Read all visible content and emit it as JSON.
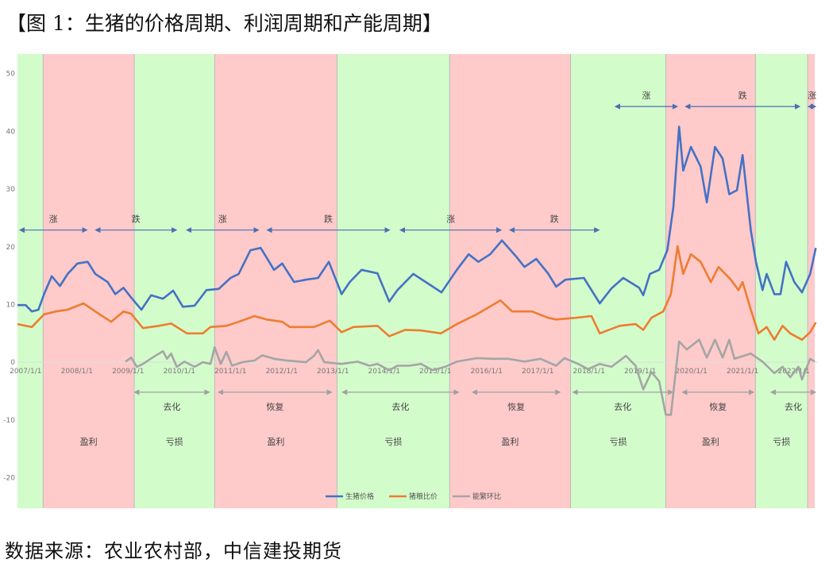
{
  "title": "【图 1：生猪的价格周期、利润周期和产能周期】",
  "source": "数据来源：农业农村部，中信建投期货",
  "colors": {
    "profit_band": "#ffcaca",
    "loss_band": "#d3fccb",
    "price": "#4472c4",
    "ratio": "#ed7d31",
    "capacity": "#a5a5a5",
    "price_arrow": "#4a6fb0",
    "capacity_arrow": "#a0a0a0"
  },
  "chart_data": {
    "type": "line",
    "title": "",
    "xlabel": "",
    "ylabel": "",
    "xlim": [
      2006.84,
      2022.47
    ],
    "ylim": [
      -25.3,
      53.4
    ],
    "y_ticks": [
      50,
      40,
      30,
      20,
      10,
      0,
      -10,
      -20
    ],
    "x_ticks": [
      {
        "label": "2007/1/1",
        "value": 2007
      },
      {
        "label": "2008/1/1",
        "value": 2008
      },
      {
        "label": "2009/1/1",
        "value": 2009
      },
      {
        "label": "2010/1/1",
        "value": 2010
      },
      {
        "label": "2011/1/1",
        "value": 2011
      },
      {
        "label": "2012/1/1",
        "value": 2012
      },
      {
        "label": "2013/1/1",
        "value": 2013
      },
      {
        "label": "2014/1/1",
        "value": 2014
      },
      {
        "label": "2015/1/1",
        "value": 2015
      },
      {
        "label": "2016/1/1",
        "value": 2016
      },
      {
        "label": "2017/1/1",
        "value": 2017
      },
      {
        "label": "2018/1/1",
        "value": 2018
      },
      {
        "label": "2019/1/1",
        "value": 2019
      },
      {
        "label": "2020/1/1",
        "value": 2020
      },
      {
        "label": "2021/1/1",
        "value": 2021
      },
      {
        "label": "2022/1/1",
        "value": 2022
      }
    ],
    "legend_position": "bottom",
    "grid": false,
    "series": [
      {
        "name": "生猪价格",
        "color_key": "price",
        "points": [
          [
            2006.84,
            9.9
          ],
          [
            2007.0,
            9.9
          ],
          [
            2007.12,
            8.8
          ],
          [
            2007.25,
            9.1
          ],
          [
            2007.36,
            11.8
          ],
          [
            2007.51,
            14.9
          ],
          [
            2007.67,
            13.2
          ],
          [
            2007.82,
            15.3
          ],
          [
            2008.01,
            17.1
          ],
          [
            2008.21,
            17.4
          ],
          [
            2008.36,
            15.3
          ],
          [
            2008.6,
            13.9
          ],
          [
            2008.75,
            11.8
          ],
          [
            2008.91,
            12.9
          ],
          [
            2009.06,
            11.2
          ],
          [
            2009.26,
            9.1
          ],
          [
            2009.45,
            11.6
          ],
          [
            2009.68,
            11.0
          ],
          [
            2009.88,
            12.4
          ],
          [
            2010.07,
            9.6
          ],
          [
            2010.3,
            9.8
          ],
          [
            2010.53,
            12.5
          ],
          [
            2010.77,
            12.7
          ],
          [
            2011.0,
            14.6
          ],
          [
            2011.16,
            15.3
          ],
          [
            2011.39,
            19.4
          ],
          [
            2011.59,
            19.8
          ],
          [
            2011.85,
            16.0
          ],
          [
            2012.01,
            17.1
          ],
          [
            2012.24,
            13.9
          ],
          [
            2012.47,
            14.3
          ],
          [
            2012.71,
            14.6
          ],
          [
            2012.92,
            17.4
          ],
          [
            2013.17,
            11.8
          ],
          [
            2013.33,
            13.9
          ],
          [
            2013.56,
            16.0
          ],
          [
            2013.87,
            15.4
          ],
          [
            2014.1,
            10.5
          ],
          [
            2014.26,
            12.5
          ],
          [
            2014.57,
            15.3
          ],
          [
            2014.88,
            13.5
          ],
          [
            2015.12,
            12.1
          ],
          [
            2015.42,
            16.0
          ],
          [
            2015.65,
            18.7
          ],
          [
            2015.84,
            17.4
          ],
          [
            2016.07,
            18.7
          ],
          [
            2016.3,
            21.1
          ],
          [
            2016.58,
            18.3
          ],
          [
            2016.74,
            16.5
          ],
          [
            2016.97,
            17.9
          ],
          [
            2017.2,
            15.4
          ],
          [
            2017.36,
            13.1
          ],
          [
            2017.54,
            14.3
          ],
          [
            2017.9,
            14.6
          ],
          [
            2018.21,
            10.2
          ],
          [
            2018.44,
            12.8
          ],
          [
            2018.67,
            14.6
          ],
          [
            2018.98,
            12.9
          ],
          [
            2019.06,
            11.6
          ],
          [
            2019.19,
            15.3
          ],
          [
            2019.37,
            16.0
          ],
          [
            2019.53,
            19.4
          ],
          [
            2019.65,
            27.0
          ],
          [
            2019.76,
            40.8
          ],
          [
            2019.84,
            33.2
          ],
          [
            2019.99,
            37.3
          ],
          [
            2020.18,
            33.9
          ],
          [
            2020.3,
            27.7
          ],
          [
            2020.46,
            37.3
          ],
          [
            2020.61,
            35.3
          ],
          [
            2020.74,
            29.1
          ],
          [
            2020.89,
            29.8
          ],
          [
            2021.0,
            35.9
          ],
          [
            2021.16,
            22.9
          ],
          [
            2021.26,
            17.4
          ],
          [
            2021.39,
            12.5
          ],
          [
            2021.47,
            15.3
          ],
          [
            2021.62,
            11.8
          ],
          [
            2021.74,
            11.8
          ],
          [
            2021.85,
            17.4
          ],
          [
            2022.01,
            13.9
          ],
          [
            2022.16,
            12.1
          ],
          [
            2022.32,
            15.3
          ],
          [
            2022.43,
            19.8
          ]
        ]
      },
      {
        "name": "猪粮比价",
        "color_key": "ratio",
        "points": [
          [
            2006.84,
            6.6
          ],
          [
            2007.12,
            6.1
          ],
          [
            2007.36,
            8.3
          ],
          [
            2007.59,
            8.8
          ],
          [
            2007.82,
            9.1
          ],
          [
            2008.13,
            10.2
          ],
          [
            2008.36,
            8.8
          ],
          [
            2008.67,
            7.0
          ],
          [
            2008.91,
            8.8
          ],
          [
            2009.06,
            8.4
          ],
          [
            2009.29,
            5.9
          ],
          [
            2009.6,
            6.3
          ],
          [
            2009.84,
            6.7
          ],
          [
            2010.15,
            5.0
          ],
          [
            2010.46,
            5.0
          ],
          [
            2010.61,
            6.1
          ],
          [
            2010.92,
            6.3
          ],
          [
            2011.16,
            7.0
          ],
          [
            2011.47,
            8.0
          ],
          [
            2011.7,
            7.4
          ],
          [
            2012.01,
            7.0
          ],
          [
            2012.16,
            6.1
          ],
          [
            2012.63,
            6.1
          ],
          [
            2012.94,
            7.2
          ],
          [
            2013.17,
            5.2
          ],
          [
            2013.4,
            6.1
          ],
          [
            2013.87,
            6.3
          ],
          [
            2014.1,
            4.5
          ],
          [
            2014.41,
            5.6
          ],
          [
            2014.72,
            5.5
          ],
          [
            2015.11,
            5.0
          ],
          [
            2015.42,
            6.6
          ],
          [
            2015.81,
            8.3
          ],
          [
            2016.27,
            10.7
          ],
          [
            2016.5,
            8.8
          ],
          [
            2016.89,
            8.8
          ],
          [
            2017.2,
            7.7
          ],
          [
            2017.36,
            7.4
          ],
          [
            2017.74,
            7.7
          ],
          [
            2018.05,
            8.0
          ],
          [
            2018.21,
            5.0
          ],
          [
            2018.6,
            6.3
          ],
          [
            2018.91,
            6.6
          ],
          [
            2019.06,
            5.6
          ],
          [
            2019.22,
            7.7
          ],
          [
            2019.45,
            8.8
          ],
          [
            2019.6,
            11.8
          ],
          [
            2019.73,
            20.1
          ],
          [
            2019.84,
            15.3
          ],
          [
            2019.99,
            18.7
          ],
          [
            2020.18,
            17.4
          ],
          [
            2020.38,
            13.9
          ],
          [
            2020.53,
            16.5
          ],
          [
            2020.77,
            14.3
          ],
          [
            2020.92,
            12.5
          ],
          [
            2021.0,
            13.9
          ],
          [
            2021.16,
            9.1
          ],
          [
            2021.31,
            5.0
          ],
          [
            2021.47,
            6.1
          ],
          [
            2021.62,
            3.9
          ],
          [
            2021.78,
            6.3
          ],
          [
            2021.93,
            5.0
          ],
          [
            2022.16,
            3.9
          ],
          [
            2022.32,
            5.2
          ],
          [
            2022.43,
            6.9
          ]
        ]
      },
      {
        "name": "能繁环比",
        "color_key": "capacity",
        "points": [
          [
            2008.95,
            0.1
          ],
          [
            2009.06,
            0.8
          ],
          [
            2009.17,
            -0.8
          ],
          [
            2009.29,
            -0.3
          ],
          [
            2009.53,
            1.1
          ],
          [
            2009.68,
            1.9
          ],
          [
            2009.76,
            0.6
          ],
          [
            2009.84,
            1.5
          ],
          [
            2009.95,
            -0.8
          ],
          [
            2010.1,
            0.1
          ],
          [
            2010.3,
            -0.8
          ],
          [
            2010.46,
            0
          ],
          [
            2010.61,
            -0.3
          ],
          [
            2010.69,
            2.6
          ],
          [
            2010.81,
            -0.3
          ],
          [
            2010.92,
            1.8
          ],
          [
            2011.03,
            -0.6
          ],
          [
            2011.23,
            0
          ],
          [
            2011.47,
            0.3
          ],
          [
            2011.62,
            1.2
          ],
          [
            2011.85,
            0.6
          ],
          [
            2012.09,
            0.3
          ],
          [
            2012.47,
            0
          ],
          [
            2012.63,
            1.1
          ],
          [
            2012.71,
            2.1
          ],
          [
            2012.83,
            0
          ],
          [
            2013.17,
            -0.3
          ],
          [
            2013.48,
            0.1
          ],
          [
            2013.71,
            -0.6
          ],
          [
            2013.87,
            -0.3
          ],
          [
            2014.1,
            -1.4
          ],
          [
            2014.26,
            -0.6
          ],
          [
            2014.49,
            -0.6
          ],
          [
            2014.72,
            -0.3
          ],
          [
            2014.95,
            -1.4
          ],
          [
            2015.19,
            -0.8
          ],
          [
            2015.42,
            0.1
          ],
          [
            2015.81,
            0.7
          ],
          [
            2016.12,
            0.6
          ],
          [
            2016.43,
            0.6
          ],
          [
            2016.74,
            0.1
          ],
          [
            2017.05,
            0.6
          ],
          [
            2017.36,
            -0.6
          ],
          [
            2017.52,
            0.7
          ],
          [
            2017.79,
            -0.3
          ],
          [
            2017.98,
            -1.2
          ],
          [
            2018.21,
            -0.3
          ],
          [
            2018.44,
            -0.8
          ],
          [
            2018.72,
            1.1
          ],
          [
            2018.91,
            -0.6
          ],
          [
            2019.06,
            -4.7
          ],
          [
            2019.22,
            -1.7
          ],
          [
            2019.37,
            -3.3
          ],
          [
            2019.5,
            -9.1
          ],
          [
            2019.6,
            -9.1
          ],
          [
            2019.76,
            3.6
          ],
          [
            2019.91,
            2.2
          ],
          [
            2020.15,
            3.9
          ],
          [
            2020.3,
            0.8
          ],
          [
            2020.46,
            3.9
          ],
          [
            2020.61,
            0.8
          ],
          [
            2020.74,
            3.9
          ],
          [
            2020.84,
            0.6
          ],
          [
            2021.16,
            1.5
          ],
          [
            2021.39,
            0.1
          ],
          [
            2021.62,
            -1.9
          ],
          [
            2021.78,
            -0.8
          ],
          [
            2021.93,
            -2.6
          ],
          [
            2022.09,
            -0.8
          ],
          [
            2022.16,
            -3.0
          ],
          [
            2022.32,
            0.6
          ],
          [
            2022.41,
            0.1
          ]
        ]
      }
    ],
    "bands": [
      {
        "from": 2006.84,
        "to": 2007.34,
        "kind": "loss",
        "label": ""
      },
      {
        "from": 2007.34,
        "to": 2009.12,
        "kind": "profit",
        "label": "盈利"
      },
      {
        "from": 2009.12,
        "to": 2010.69,
        "kind": "loss",
        "label": "亏损"
      },
      {
        "from": 2010.69,
        "to": 2013.08,
        "kind": "profit",
        "label": "盈利"
      },
      {
        "from": 2013.08,
        "to": 2015.28,
        "kind": "loss",
        "label": "亏损"
      },
      {
        "from": 2015.28,
        "to": 2017.64,
        "kind": "profit",
        "label": "盈利"
      },
      {
        "from": 2017.64,
        "to": 2019.5,
        "kind": "loss",
        "label": "亏损"
      },
      {
        "from": 2019.5,
        "to": 2021.25,
        "kind": "profit",
        "label": "盈利"
      },
      {
        "from": 2021.25,
        "to": 2022.27,
        "kind": "loss",
        "label": "亏损"
      },
      {
        "from": 2022.27,
        "to": 2022.41,
        "kind": "profit",
        "label": ""
      }
    ],
    "price_cycle_arrows": [
      {
        "from": 2006.84,
        "to": 2008.24,
        "level": 22.9,
        "label": "涨"
      },
      {
        "from": 2008.32,
        "to": 2009.99,
        "level": 22.9,
        "label": "跌"
      },
      {
        "from": 2010.1,
        "to": 2011.59,
        "level": 22.9,
        "label": "涨"
      },
      {
        "from": 2011.67,
        "to": 2014.15,
        "level": 22.9,
        "label": "跌"
      },
      {
        "from": 2014.27,
        "to": 2016.33,
        "level": 22.9,
        "label": "涨"
      },
      {
        "from": 2016.41,
        "to": 2018.24,
        "level": 22.9,
        "label": "跌"
      },
      {
        "from": 2018.47,
        "to": 2019.77,
        "level": 44.3,
        "label": "涨"
      },
      {
        "from": 2019.84,
        "to": 2022.16,
        "level": 44.3,
        "label": "跌"
      },
      {
        "from": 2022.24,
        "to": 2022.47,
        "level": 44.3,
        "label": "涨"
      }
    ],
    "capacity_cycle_arrows": [
      {
        "from": 2009.08,
        "to": 2010.63,
        "level": -5.2,
        "label": "去化"
      },
      {
        "from": 2010.72,
        "to": 2013.02,
        "level": -5.2,
        "label": "恢复"
      },
      {
        "from": 2013.14,
        "to": 2015.5,
        "level": -5.2,
        "label": "去化"
      },
      {
        "from": 2015.68,
        "to": 2017.48,
        "level": -5.2,
        "label": "恢复"
      },
      {
        "from": 2017.64,
        "to": 2019.68,
        "level": -5.2,
        "label": "去化"
      },
      {
        "from": 2019.78,
        "to": 2021.26,
        "level": -5.2,
        "label": "恢复"
      },
      {
        "from": 2021.51,
        "to": 2022.47,
        "level": -5.2,
        "label": "去化"
      }
    ]
  }
}
